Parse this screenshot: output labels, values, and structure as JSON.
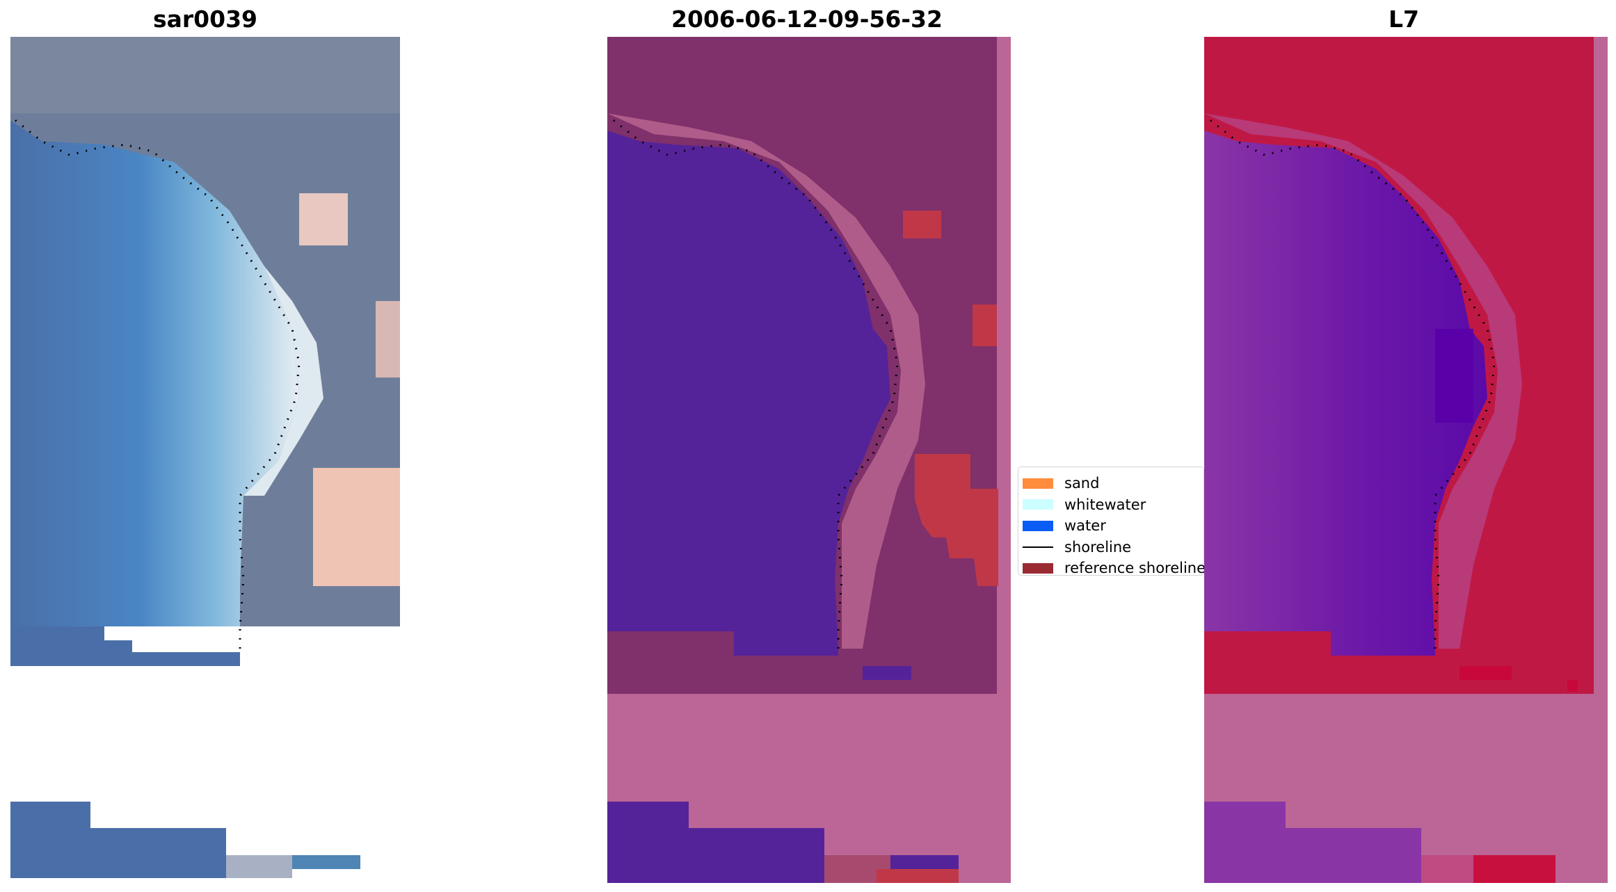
{
  "panels": [
    {
      "title": "sar0039"
    },
    {
      "title": "2006-06-12-09-56-32"
    },
    {
      "title": "L7"
    }
  ],
  "legend": {
    "items": [
      {
        "label": "sand",
        "color": "#ff8c3c"
      },
      {
        "label": "whitewater",
        "color": "#ccffff"
      },
      {
        "label": "water",
        "color": "#0a5cf5"
      },
      {
        "label": "shoreline",
        "color": "#000000",
        "kind": "line"
      },
      {
        "label": "reference shoreline",
        "color": "#9a2b33"
      }
    ]
  },
  "colors": {
    "rgb_water": "#4a82c0",
    "rgb_land": "#6e7e9a",
    "rgb_sand": "#f0c4b4",
    "class_water": "#552399",
    "class_land": "#80306a",
    "class_sand": "#bf3c4a",
    "class_nodata": "#bb6696",
    "ndwi_water": "#7a1faa",
    "ndwi_land": "#c01845",
    "ndwi_nodata": "#bb6696"
  }
}
